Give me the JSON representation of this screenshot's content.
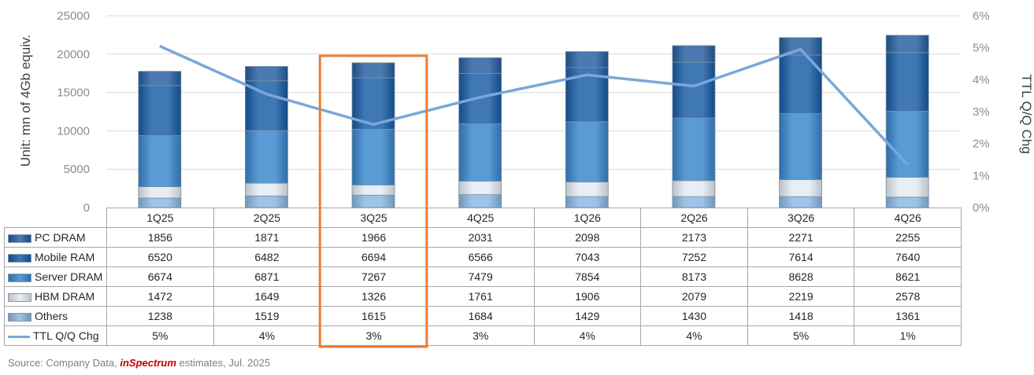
{
  "chart_data": {
    "type": "bar",
    "stacked": true,
    "categories": [
      "1Q25",
      "2Q25",
      "3Q25",
      "4Q25",
      "1Q26",
      "2Q26",
      "3Q26",
      "4Q26"
    ],
    "series": [
      {
        "name": "PC DRAM",
        "values": [
          1856,
          1871,
          1966,
          2031,
          2098,
          2173,
          2271,
          2255
        ],
        "color": "#4a7ab0"
      },
      {
        "name": "Mobile RAM",
        "values": [
          6520,
          6482,
          6694,
          6566,
          7043,
          7252,
          7614,
          7640
        ],
        "color": "#3f78b5"
      },
      {
        "name": "Server DRAM",
        "values": [
          6674,
          6871,
          7267,
          7479,
          7854,
          8173,
          8628,
          8621
        ],
        "color": "#5b9bd5"
      },
      {
        "name": "HBM DRAM",
        "values": [
          1472,
          1649,
          1326,
          1761,
          1906,
          2079,
          2219,
          2578
        ],
        "color": "#e8eef5"
      },
      {
        "name": "Others",
        "values": [
          1238,
          1519,
          1615,
          1684,
          1429,
          1430,
          1418,
          1361
        ],
        "color": "#9dc3e6"
      }
    ],
    "line_series": {
      "name": "TTL Q/Q Chg",
      "values": [
        5.05,
        3.55,
        2.6,
        3.45,
        4.15,
        3.8,
        4.95,
        1.35
      ],
      "labels": [
        "5%",
        "4%",
        "3%",
        "3%",
        "4%",
        "4%",
        "5%",
        "1%"
      ],
      "color": "#7ba7d8",
      "axis": "right"
    },
    "y_left": {
      "label": "Unit: mn of 4Gb equiv.",
      "ticks": [
        "0",
        "5000",
        "10000",
        "15000",
        "20000",
        "25000"
      ],
      "range": [
        0,
        25000
      ]
    },
    "y_right": {
      "label": "TTL Q/Q Chg",
      "ticks": [
        "0%",
        "1%",
        "2%",
        "3%",
        "4%",
        "5%",
        "6%"
      ],
      "range": [
        0,
        6
      ]
    },
    "highlight": {
      "category": "3Q25",
      "color": "#ed7d31"
    },
    "grid": true,
    "legend": "table"
  },
  "source": {
    "prefix": "Source: Company Data, ",
    "brand": "inSpectrum",
    "suffix": " estimates, Jul. 2025"
  }
}
